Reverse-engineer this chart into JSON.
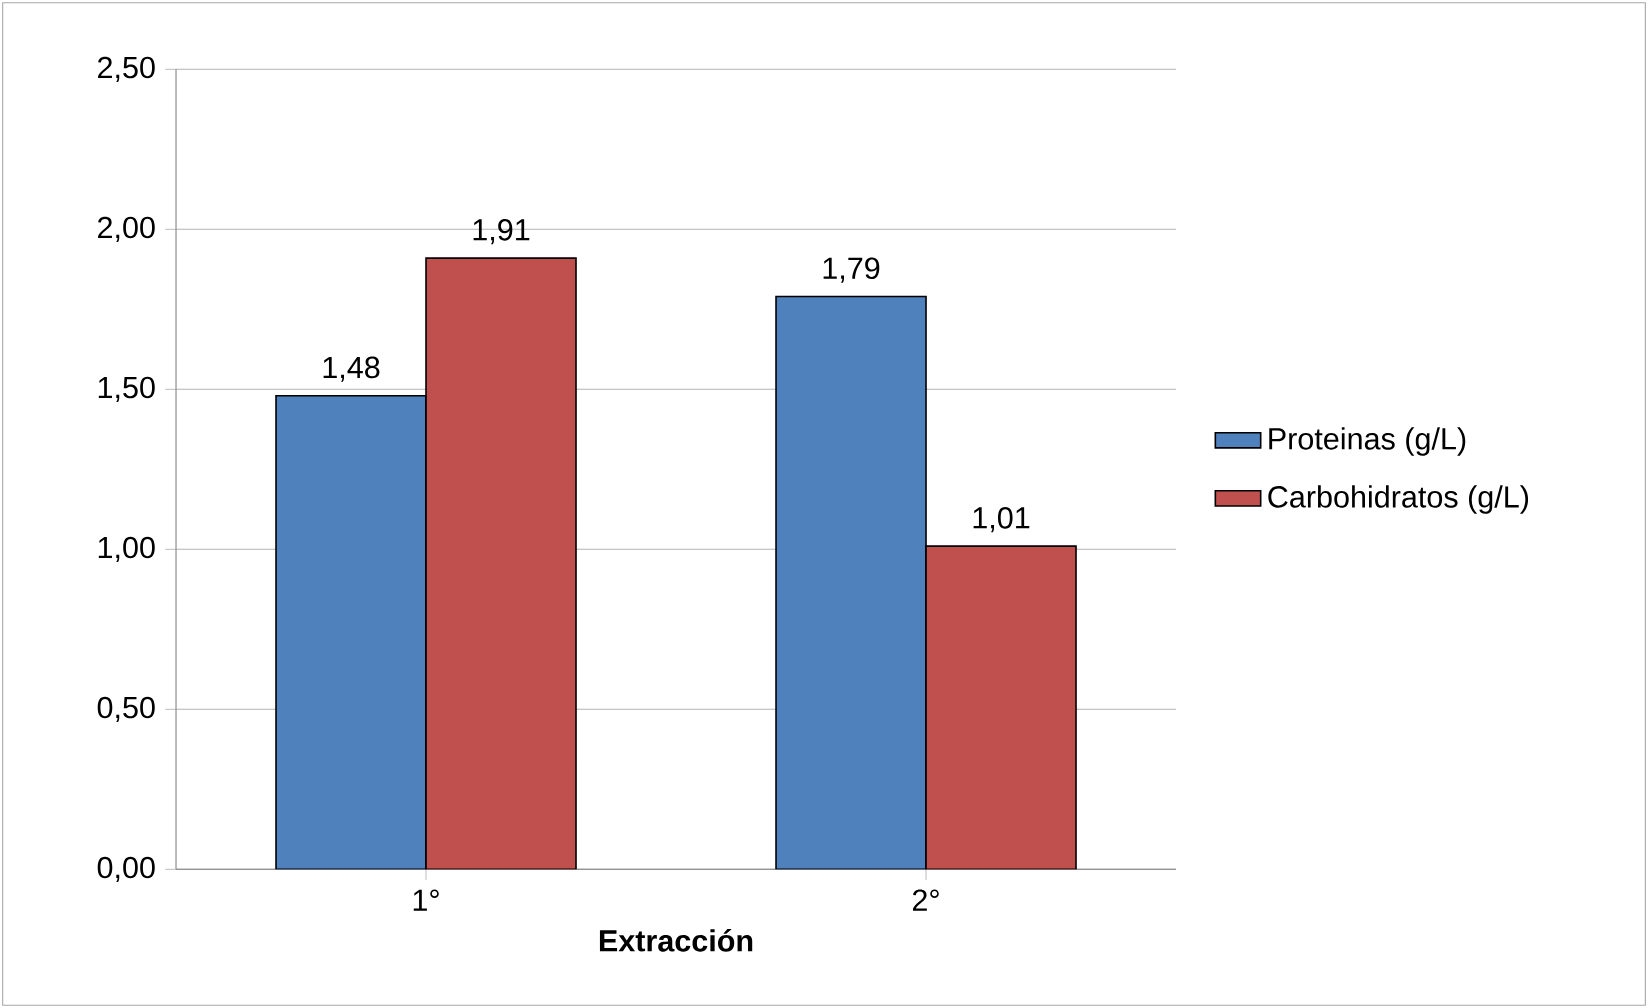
{
  "chart_data": {
    "type": "bar",
    "xlabel": "Extracción",
    "categories": [
      "1°",
      "2°"
    ],
    "series": [
      {
        "name": "Proteinas (g/L)",
        "color": "#4f81bd",
        "values": [
          1.48,
          1.79
        ],
        "value_labels": [
          "1,48",
          "1,79"
        ]
      },
      {
        "name": "Carbohidratos (g/L)",
        "color": "#c0504d",
        "values": [
          1.91,
          1.01
        ],
        "value_labels": [
          "1,91",
          "1,01"
        ]
      }
    ],
    "ylim": [
      0,
      2.5
    ],
    "yticks": [
      {
        "value": 0,
        "label": "0,00"
      },
      {
        "value": 0.5,
        "label": "0,50"
      },
      {
        "value": 1,
        "label": "1,00"
      },
      {
        "value": 1.5,
        "label": "1,50"
      },
      {
        "value": 2,
        "label": "2,00"
      },
      {
        "value": 2.5,
        "label": "2,50"
      }
    ],
    "grid": "y",
    "legend": "right"
  }
}
